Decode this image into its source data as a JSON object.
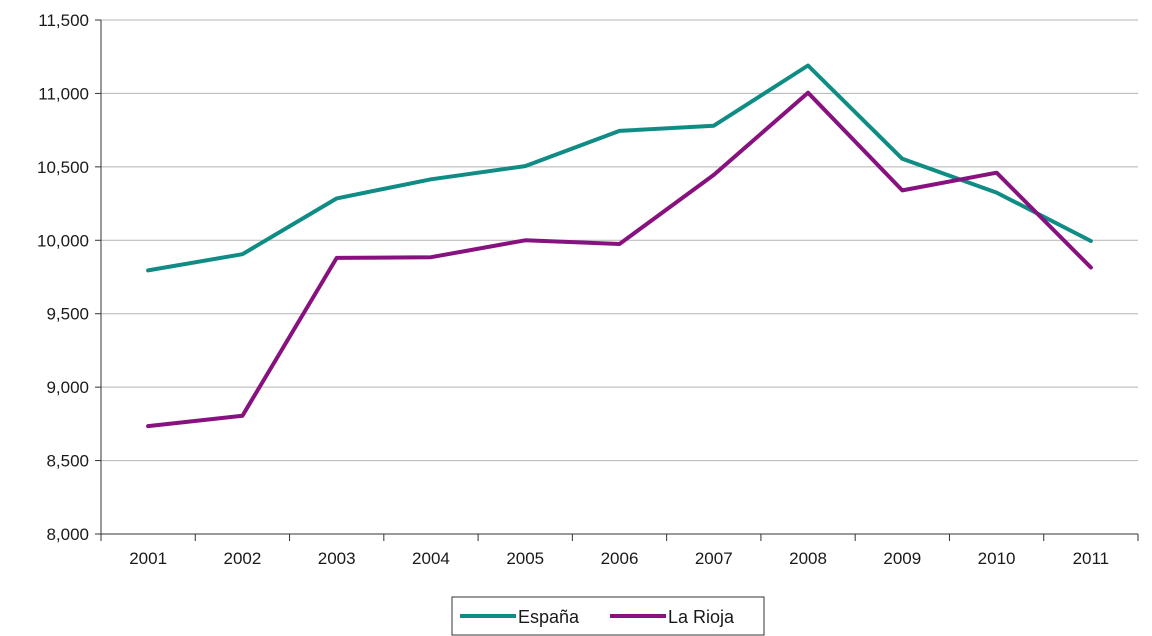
{
  "chart_data": {
    "type": "line",
    "title": "",
    "xlabel": "",
    "ylabel": "",
    "categories": [
      "2001",
      "2002",
      "2003",
      "2004",
      "2005",
      "2006",
      "2007",
      "2008",
      "2009",
      "2010",
      "2011"
    ],
    "series": [
      {
        "name": "España",
        "color": "#0f8c84",
        "values": [
          9795,
          9905,
          10285,
          10415,
          10505,
          10745,
          10780,
          11190,
          10555,
          10325,
          9995
        ]
      },
      {
        "name": "La Rioja",
        "color": "#86117f",
        "values": [
          8735,
          8805,
          9880,
          9885,
          10000,
          9975,
          10445,
          11005,
          10340,
          10460,
          9815
        ]
      }
    ],
    "ylim": [
      8000,
      11500
    ],
    "yticks": [
      8000,
      8500,
      9000,
      9500,
      10000,
      10500,
      11000,
      11500
    ],
    "ytick_labels": [
      "8,000",
      "8,500",
      "9,000",
      "9,500",
      "10,000",
      "10,500",
      "11,000",
      "11,500"
    ],
    "grid": true,
    "legend_position": "bottom"
  }
}
